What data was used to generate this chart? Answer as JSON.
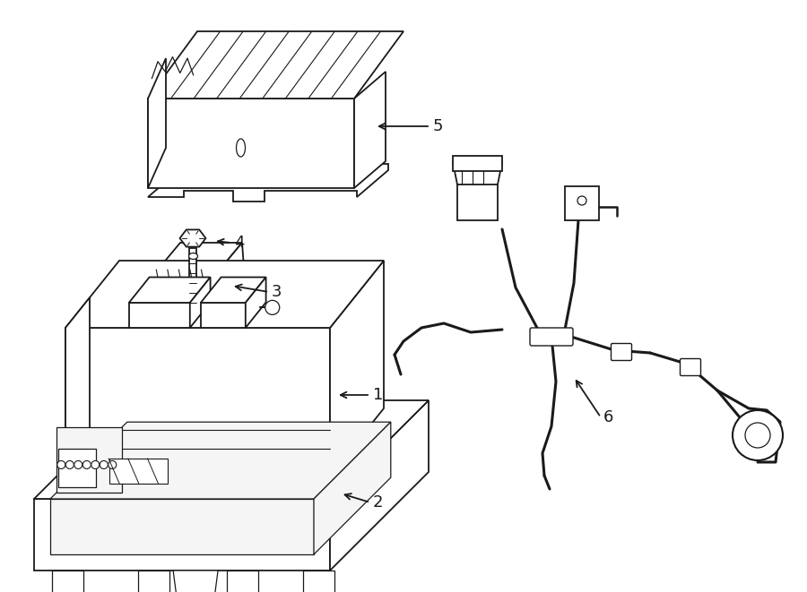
{
  "bg_color": "#ffffff",
  "lc": "#1a1a1a",
  "lw": 1.3,
  "figsize": [
    9.0,
    6.61
  ],
  "dpi": 100
}
